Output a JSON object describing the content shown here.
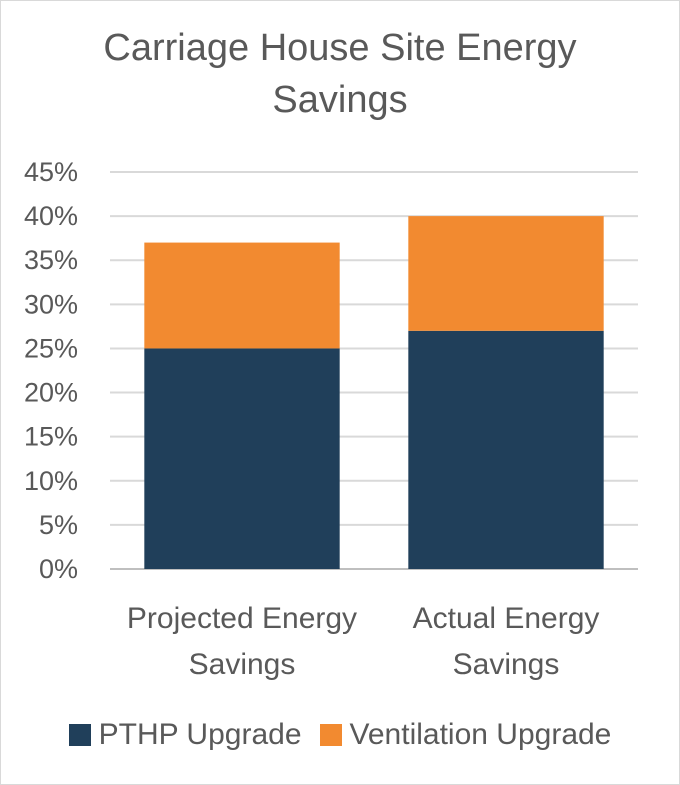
{
  "chart_data": {
    "type": "bar",
    "stacked": true,
    "title": "Carriage House Site Energy Savings",
    "categories": [
      "Projected Energy Savings",
      "Actual Energy Savings"
    ],
    "series": [
      {
        "name": "PTHP Upgrade",
        "values": [
          0.25,
          0.27
        ],
        "color": "#203f5a"
      },
      {
        "name": "Ventilation Upgrade",
        "values": [
          0.12,
          0.13
        ],
        "color": "#f28a30"
      }
    ],
    "y_ticks": [
      "0%",
      "5%",
      "10%",
      "15%",
      "20%",
      "25%",
      "30%",
      "35%",
      "40%",
      "45%"
    ],
    "ylim": [
      0,
      0.45
    ],
    "grid": true,
    "legend": "bottom"
  }
}
